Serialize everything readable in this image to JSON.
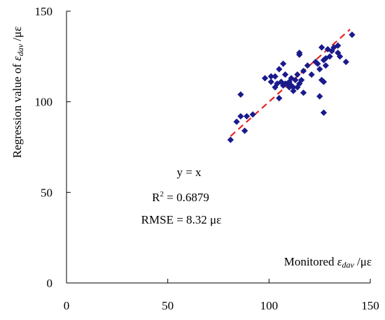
{
  "chart_data": {
    "type": "scatter",
    "xlabel": {
      "prefix": "Monitored ",
      "symbol": "ε",
      "subscript": "dav",
      "suffix": " /με"
    },
    "ylabel": {
      "prefix": "Regression value of ",
      "symbol": "ε",
      "subscript": "dav",
      "suffix": " /με"
    },
    "xlim": [
      0,
      150
    ],
    "ylim": [
      0,
      150
    ],
    "xticks": [
      "0",
      "50",
      "100",
      "150"
    ],
    "yticks": [
      "0",
      "50",
      "100",
      "150"
    ],
    "grid": false,
    "annotations": {
      "equation": "y = x",
      "r2_prefix": "R",
      "r2_sup": "2",
      "r2_suffix": " = 0.6879",
      "rmse": "RMSE = 8.32 με"
    },
    "fit_line": {
      "x": [
        81,
        140
      ],
      "y": [
        81,
        140
      ],
      "style": "dashed",
      "color": "#e8231c"
    },
    "marker_color": "#1a1a8c",
    "points": [
      [
        81,
        79
      ],
      [
        84,
        89
      ],
      [
        86,
        92
      ],
      [
        86,
        104
      ],
      [
        88,
        84
      ],
      [
        89,
        92
      ],
      [
        92,
        93
      ],
      [
        98,
        113
      ],
      [
        101,
        114
      ],
      [
        101,
        111
      ],
      [
        103,
        108
      ],
      [
        103,
        114
      ],
      [
        104,
        110
      ],
      [
        105,
        118
      ],
      [
        105,
        102
      ],
      [
        106,
        111
      ],
      [
        107,
        121
      ],
      [
        107,
        109
      ],
      [
        108,
        115
      ],
      [
        108,
        110
      ],
      [
        109,
        110
      ],
      [
        110,
        108
      ],
      [
        110,
        111
      ],
      [
        111,
        109
      ],
      [
        111,
        113
      ],
      [
        112,
        106
      ],
      [
        112,
        108
      ],
      [
        113,
        112
      ],
      [
        114,
        115
      ],
      [
        114,
        108
      ],
      [
        115,
        127
      ],
      [
        115,
        126
      ],
      [
        115,
        110
      ],
      [
        116,
        112
      ],
      [
        117,
        105
      ],
      [
        117,
        117
      ],
      [
        119,
        120
      ],
      [
        121,
        115
      ],
      [
        123,
        122
      ],
      [
        124,
        121
      ],
      [
        125,
        118
      ],
      [
        125,
        103
      ],
      [
        126,
        130
      ],
      [
        126,
        112
      ],
      [
        127,
        123
      ],
      [
        127,
        111
      ],
      [
        127,
        94
      ],
      [
        128,
        120
      ],
      [
        128,
        124
      ],
      [
        129,
        129
      ],
      [
        130,
        125
      ],
      [
        131,
        128
      ],
      [
        132,
        130
      ],
      [
        134,
        127
      ],
      [
        134,
        131
      ],
      [
        135,
        125
      ],
      [
        138,
        122
      ],
      [
        141,
        137
      ]
    ]
  }
}
